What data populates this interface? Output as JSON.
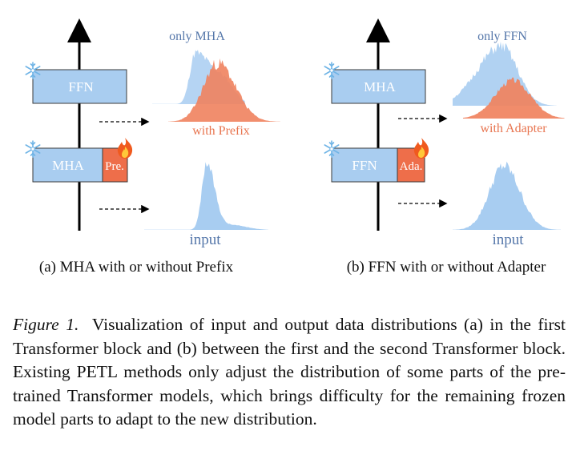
{
  "panel_a": {
    "block_top": "FFN",
    "block_bottom": "MHA",
    "module": "Pre.",
    "label_top": "only MHA",
    "label_mid": "with Prefix",
    "label_input": "input",
    "caption": "(a) MHA with or without Prefix"
  },
  "panel_b": {
    "block_top": "MHA",
    "block_bottom": "FFN",
    "module": "Ada.",
    "label_top": "only FFN",
    "label_mid": "with Adapter",
    "label_input": "input",
    "caption": "(b) FFN with or without Adapter"
  },
  "caption": {
    "label": "Figure 1.",
    "text": "Visualization of input and output data distributions (a) in the first Transformer block and (b) between the first and the second Transformer block. Existing PETL methods only adjust the distribution of some parts of the pre-trained Transformer models, which brings difficulty for the remaining frozen model parts to adapt to the new distribution."
  },
  "colors": {
    "block_fill": "#a9cdf0",
    "module_fill": "#ee6e4a",
    "dist_blue": "#a8cdf1",
    "dist_orange": "#f0825e",
    "label_blue": "#5577aa",
    "label_orange": "#e8744f"
  },
  "icons": [
    "snowflake-icon",
    "fire-icon"
  ]
}
